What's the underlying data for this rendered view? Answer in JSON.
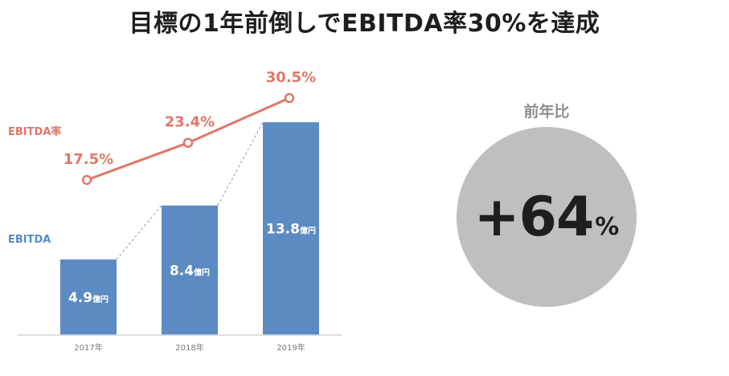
{
  "title": "目標の1年前倒しでEBITDA率30%を達成",
  "chart_data": {
    "type": "bar",
    "categories": [
      "2017年",
      "2018年",
      "2019年"
    ],
    "series": [
      {
        "name": "EBITDA",
        "type": "bar",
        "values": [
          4.9,
          8.4,
          13.8
        ],
        "value_labels": [
          "4.9",
          "8.4",
          "13.8"
        ],
        "unit": "億円",
        "color": "#5b8bc2"
      },
      {
        "name": "EBITDA率",
        "type": "line",
        "values": [
          17.5,
          23.4,
          30.5
        ],
        "value_labels": [
          "17.5%",
          "23.4%",
          "30.5%"
        ],
        "unit": "%",
        "color": "#e07767"
      }
    ],
    "ylim": [
      0,
      14.4
    ],
    "y2lim": [
      0,
      35
    ],
    "grid": false,
    "legend": "left (inline series labels)"
  },
  "yoy": {
    "label": "前年比",
    "value": "+64",
    "unit": "%",
    "circle_color": "#bfbfbf"
  }
}
